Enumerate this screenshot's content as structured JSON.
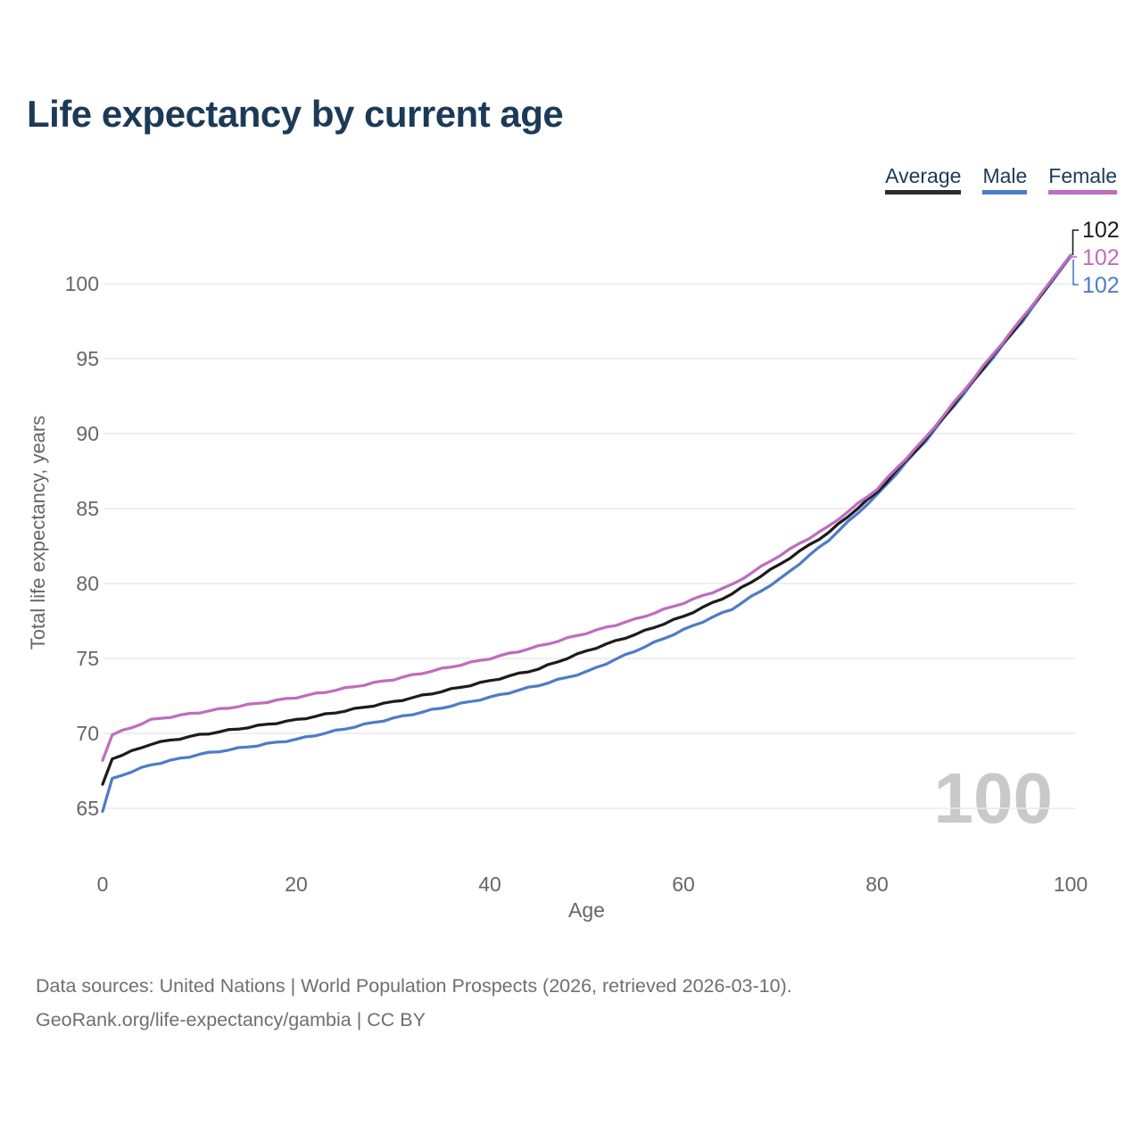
{
  "page": {
    "title": "Life expectancy by current age",
    "hover_age_readout": "100"
  },
  "legend": {
    "items": [
      {
        "label": "Average",
        "color": "#2b2b2b"
      },
      {
        "label": "Male",
        "color": "#4e7cc7"
      },
      {
        "label": "Female",
        "color": "#bf6cbf"
      }
    ]
  },
  "chart_data": {
    "type": "line",
    "title": "Life expectancy by current age",
    "xlabel": "Age",
    "ylabel": "Total life expectancy, years",
    "xlim": [
      0,
      100
    ],
    "ylim": [
      65,
      102
    ],
    "xticks": [
      0,
      20,
      40,
      60,
      80,
      100
    ],
    "yticks": [
      65,
      70,
      75,
      80,
      85,
      90,
      95,
      100
    ],
    "grid": "horizontal",
    "legend_position": "top-right",
    "x": [
      0,
      1,
      5,
      10,
      15,
      20,
      25,
      30,
      35,
      40,
      45,
      50,
      55,
      60,
      65,
      70,
      75,
      80,
      85,
      90,
      95,
      100
    ],
    "series": [
      {
        "name": "Average",
        "color": "#1c1c1c",
        "end_label": "102",
        "values": [
          66.6,
          68.3,
          69.3,
          69.9,
          70.4,
          70.9,
          71.5,
          72.1,
          72.8,
          73.5,
          74.3,
          75.5,
          76.6,
          77.8,
          79.3,
          81.3,
          83.4,
          86.1,
          89.6,
          93.6,
          97.6,
          101.9
        ]
      },
      {
        "name": "Male",
        "color": "#4e7cc7",
        "end_label": "102",
        "values": [
          64.8,
          67.0,
          67.9,
          68.6,
          69.1,
          69.6,
          70.3,
          71.0,
          71.7,
          72.4,
          73.2,
          74.1,
          75.5,
          76.9,
          78.3,
          80.3,
          82.9,
          85.9,
          89.5,
          93.5,
          97.5,
          101.8
        ]
      },
      {
        "name": "Female",
        "color": "#bf6cbf",
        "end_label": "102",
        "values": [
          68.2,
          69.9,
          70.9,
          71.4,
          71.9,
          72.4,
          73.0,
          73.6,
          74.3,
          75.0,
          75.8,
          76.7,
          77.6,
          78.7,
          79.9,
          81.9,
          83.8,
          86.3,
          89.7,
          93.7,
          97.7,
          101.9
        ]
      }
    ]
  },
  "footer": {
    "line1": "Data sources: United Nations | World Population Prospects (2026, retrieved 2026-03-10).",
    "line2": "GeoRank.org/life-expectancy/gambia | CC BY"
  }
}
